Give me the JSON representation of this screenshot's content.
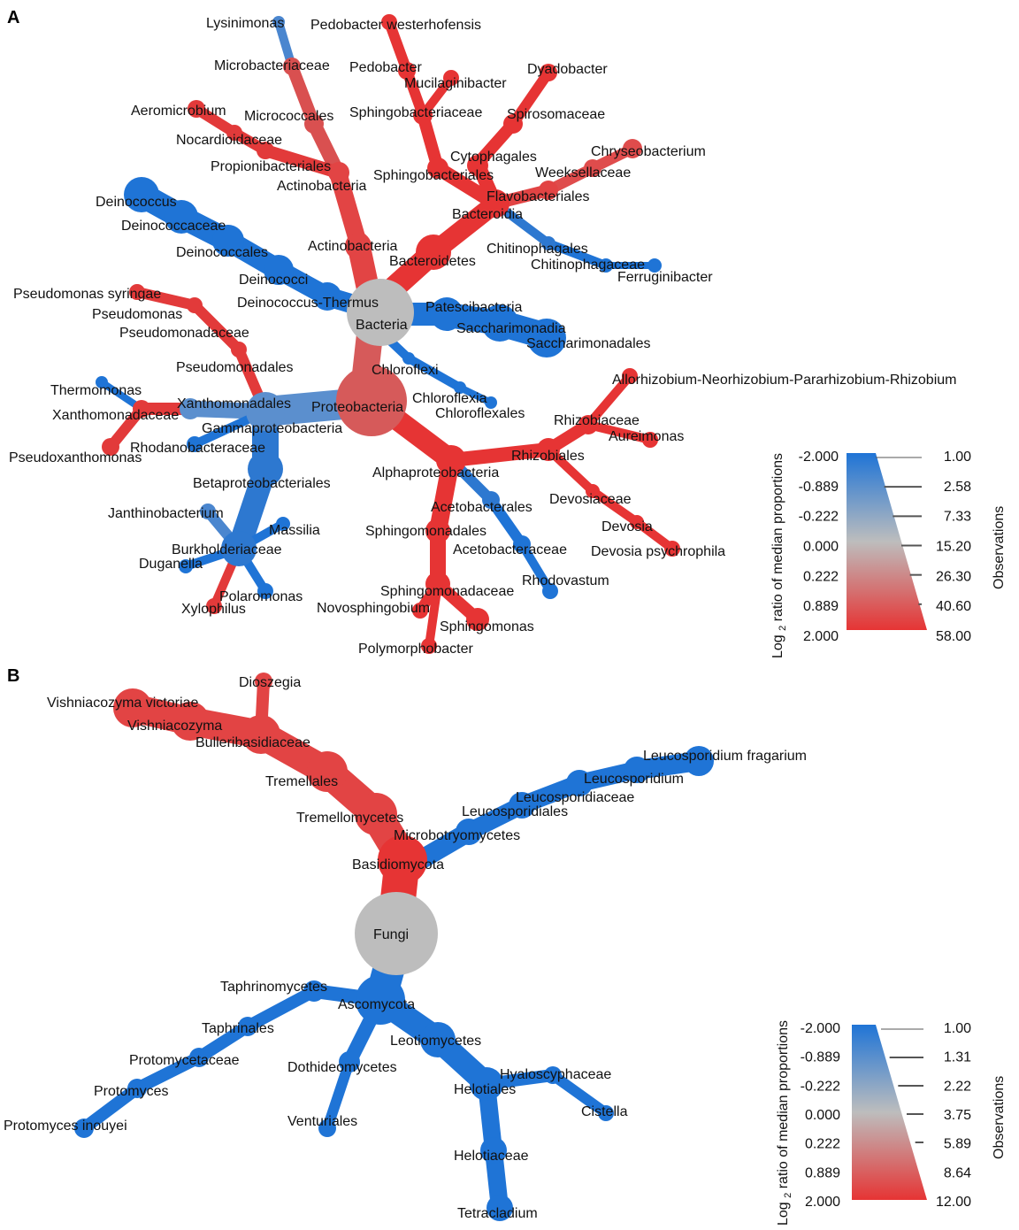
{
  "panel_a": {
    "letter": "A",
    "root": "Bacteria",
    "labels": {
      "lysinimonas": "Lysinimonas",
      "pedobacter_westerhofensis": "Pedobacter westerhofensis",
      "microbacteriaceae": "Microbacteriaceae",
      "pedobacter": "Pedobacter",
      "dyadobacter": "Dyadobacter",
      "mucilaginibacter": "Mucilaginibacter",
      "aeromicrobium": "Aeromicrobium",
      "micrococcales": "Micrococcales",
      "sphingobacteriaceae": "Sphingobacteriaceae",
      "spirosomaceae": "Spirosomaceae",
      "nocardioidaceae": "Nocardioidaceae",
      "cytophagales": "Cytophagales",
      "chryseobacterium": "Chryseobacterium",
      "propionibacteriales": "Propionibacteriales",
      "weeksellaceae": "Weeksellaceae",
      "actinobacteria_class": "Actinobacteria",
      "sphingobacteriales": "Sphingobacteriales",
      "flavobacteriales": "Flavobacteriales",
      "deinococcus": "Deinococcus",
      "bacteroidia": "Bacteroidia",
      "deinococcaceae": "Deinococcaceae",
      "actinobacteria_phylum": "Actinobacteria",
      "chitinophagales": "Chitinophagales",
      "deinococcales": "Deinococcales",
      "bacteroidetes": "Bacteroidetes",
      "chitinophagaceae": "Chitinophagaceae",
      "ferruginibacter": "Ferruginibacter",
      "deinococci": "Deinococci",
      "pseudomonas_syringae": "Pseudomonas syringae",
      "deinococcus_thermus": "Deinococcus-Thermus",
      "patescibacteria": "Patescibacteria",
      "pseudomonas": "Pseudomonas",
      "saccharimonadia": "Saccharimonadia",
      "pseudomonadaceae": "Pseudomonadaceae",
      "saccharimonadales": "Saccharimonadales",
      "pseudomonadales": "Pseudomonadales",
      "chloroflexi": "Chloroflexi",
      "allorhizobium": "Allorhizobium-Neorhizobium-Pararhizobium-Rhizobium",
      "thermomonas": "Thermomonas",
      "chloroflexia": "Chloroflexia",
      "xanthomonadales": "Xanthomonadales",
      "proteobacteria": "Proteobacteria",
      "xanthomonadaceae": "Xanthomonadaceae",
      "chloroflexales": "Chloroflexales",
      "rhizobiaceae": "Rhizobiaceae",
      "gammaproteobacteria": "Gammaproteobacteria",
      "aureimonas": "Aureimonas",
      "rhodanobacteraceae": "Rhodanobacteraceae",
      "pseudoxanthomonas": "Pseudoxanthomonas",
      "rhizobiales": "Rhizobiales",
      "alphaproteobacteria": "Alphaproteobacteria",
      "betaproteobacteriales": "Betaproteobacteriales",
      "devosiaceae": "Devosiaceae",
      "acetobacterales": "Acetobacterales",
      "janthinobacterium": "Janthinobacterium",
      "devosia": "Devosia",
      "massilia": "Massilia",
      "sphingomonadales": "Sphingomonadales",
      "burkholderiaceae": "Burkholderiaceae",
      "acetobacteraceae": "Acetobacteraceae",
      "devosia_psychrophila": "Devosia psychrophila",
      "duganella": "Duganella",
      "rhodovastum": "Rhodovastum",
      "polaromonas": "Polaromonas",
      "sphingomonadaceae": "Sphingomonadaceae",
      "novosphingobium": "Novosphingobium",
      "xylophilus": "Xylophilus",
      "sphingomonas": "Sphingomonas",
      "polymorphobacter": "Polymorphobacter"
    },
    "legend": {
      "color_title": "Log 2 ratio of median proportions",
      "size_title": "Observations",
      "color_ticks": [
        "-2.000",
        "-0.889",
        "-0.222",
        "0.000",
        "0.222",
        "0.889",
        "2.000"
      ],
      "size_ticks": [
        "1.00",
        "2.58",
        "7.33",
        "15.20",
        "26.30",
        "40.60",
        "58.00"
      ]
    }
  },
  "panel_b": {
    "letter": "B",
    "root": "Fungi",
    "labels": {
      "dioszegia": "Dioszegia",
      "vishniacozyma_victoriae": "Vishniacozyma victoriae",
      "vishniacozyma": "Vishniacozyma",
      "bulleribasidiaceae": "Bulleribasidiaceae",
      "leucosporidium_fragarium": "Leucosporidium fragarium",
      "leucosporidium": "Leucosporidium",
      "tremellales": "Tremellales",
      "leucosporidiaceae": "Leucosporidiaceae",
      "leucosporidiales": "Leucosporidiales",
      "tremellomycetes": "Tremellomycetes",
      "microbotryomycetes": "Microbotryomycetes",
      "basidiomycota": "Basidiomycota",
      "taphrinomycetes": "Taphrinomycetes",
      "ascomycota": "Ascomycota",
      "taphrinales": "Taphrinales",
      "leotiomycetes": "Leotiomycetes",
      "protomycetaceae": "Protomycetaceae",
      "dothideomycetes": "Dothideomycetes",
      "hyaloscyphaceae": "Hyaloscyphaceae",
      "protomyces": "Protomyces",
      "helotiales": "Helotiales",
      "cistella": "Cistella",
      "protomyces_inouyei": "Protomyces inouyei",
      "venturiales": "Venturiales",
      "helotiaceae": "Helotiaceae",
      "tetracladium": "Tetracladium"
    },
    "legend": {
      "color_title": "Log 2 ratio of median proportions",
      "size_title": "Observations",
      "color_ticks": [
        "-2.000",
        "-0.889",
        "-0.222",
        "0.000",
        "0.222",
        "0.889",
        "2.000"
      ],
      "size_ticks": [
        "1.00",
        "1.31",
        "2.22",
        "3.75",
        "5.89",
        "8.64",
        "12.00"
      ]
    }
  },
  "colors": {
    "blue": "#1f74d6",
    "blue_light": "#5b8fce",
    "grey": "#bdbdbd",
    "red_light": "#d65a5a",
    "red": "#e63434"
  }
}
